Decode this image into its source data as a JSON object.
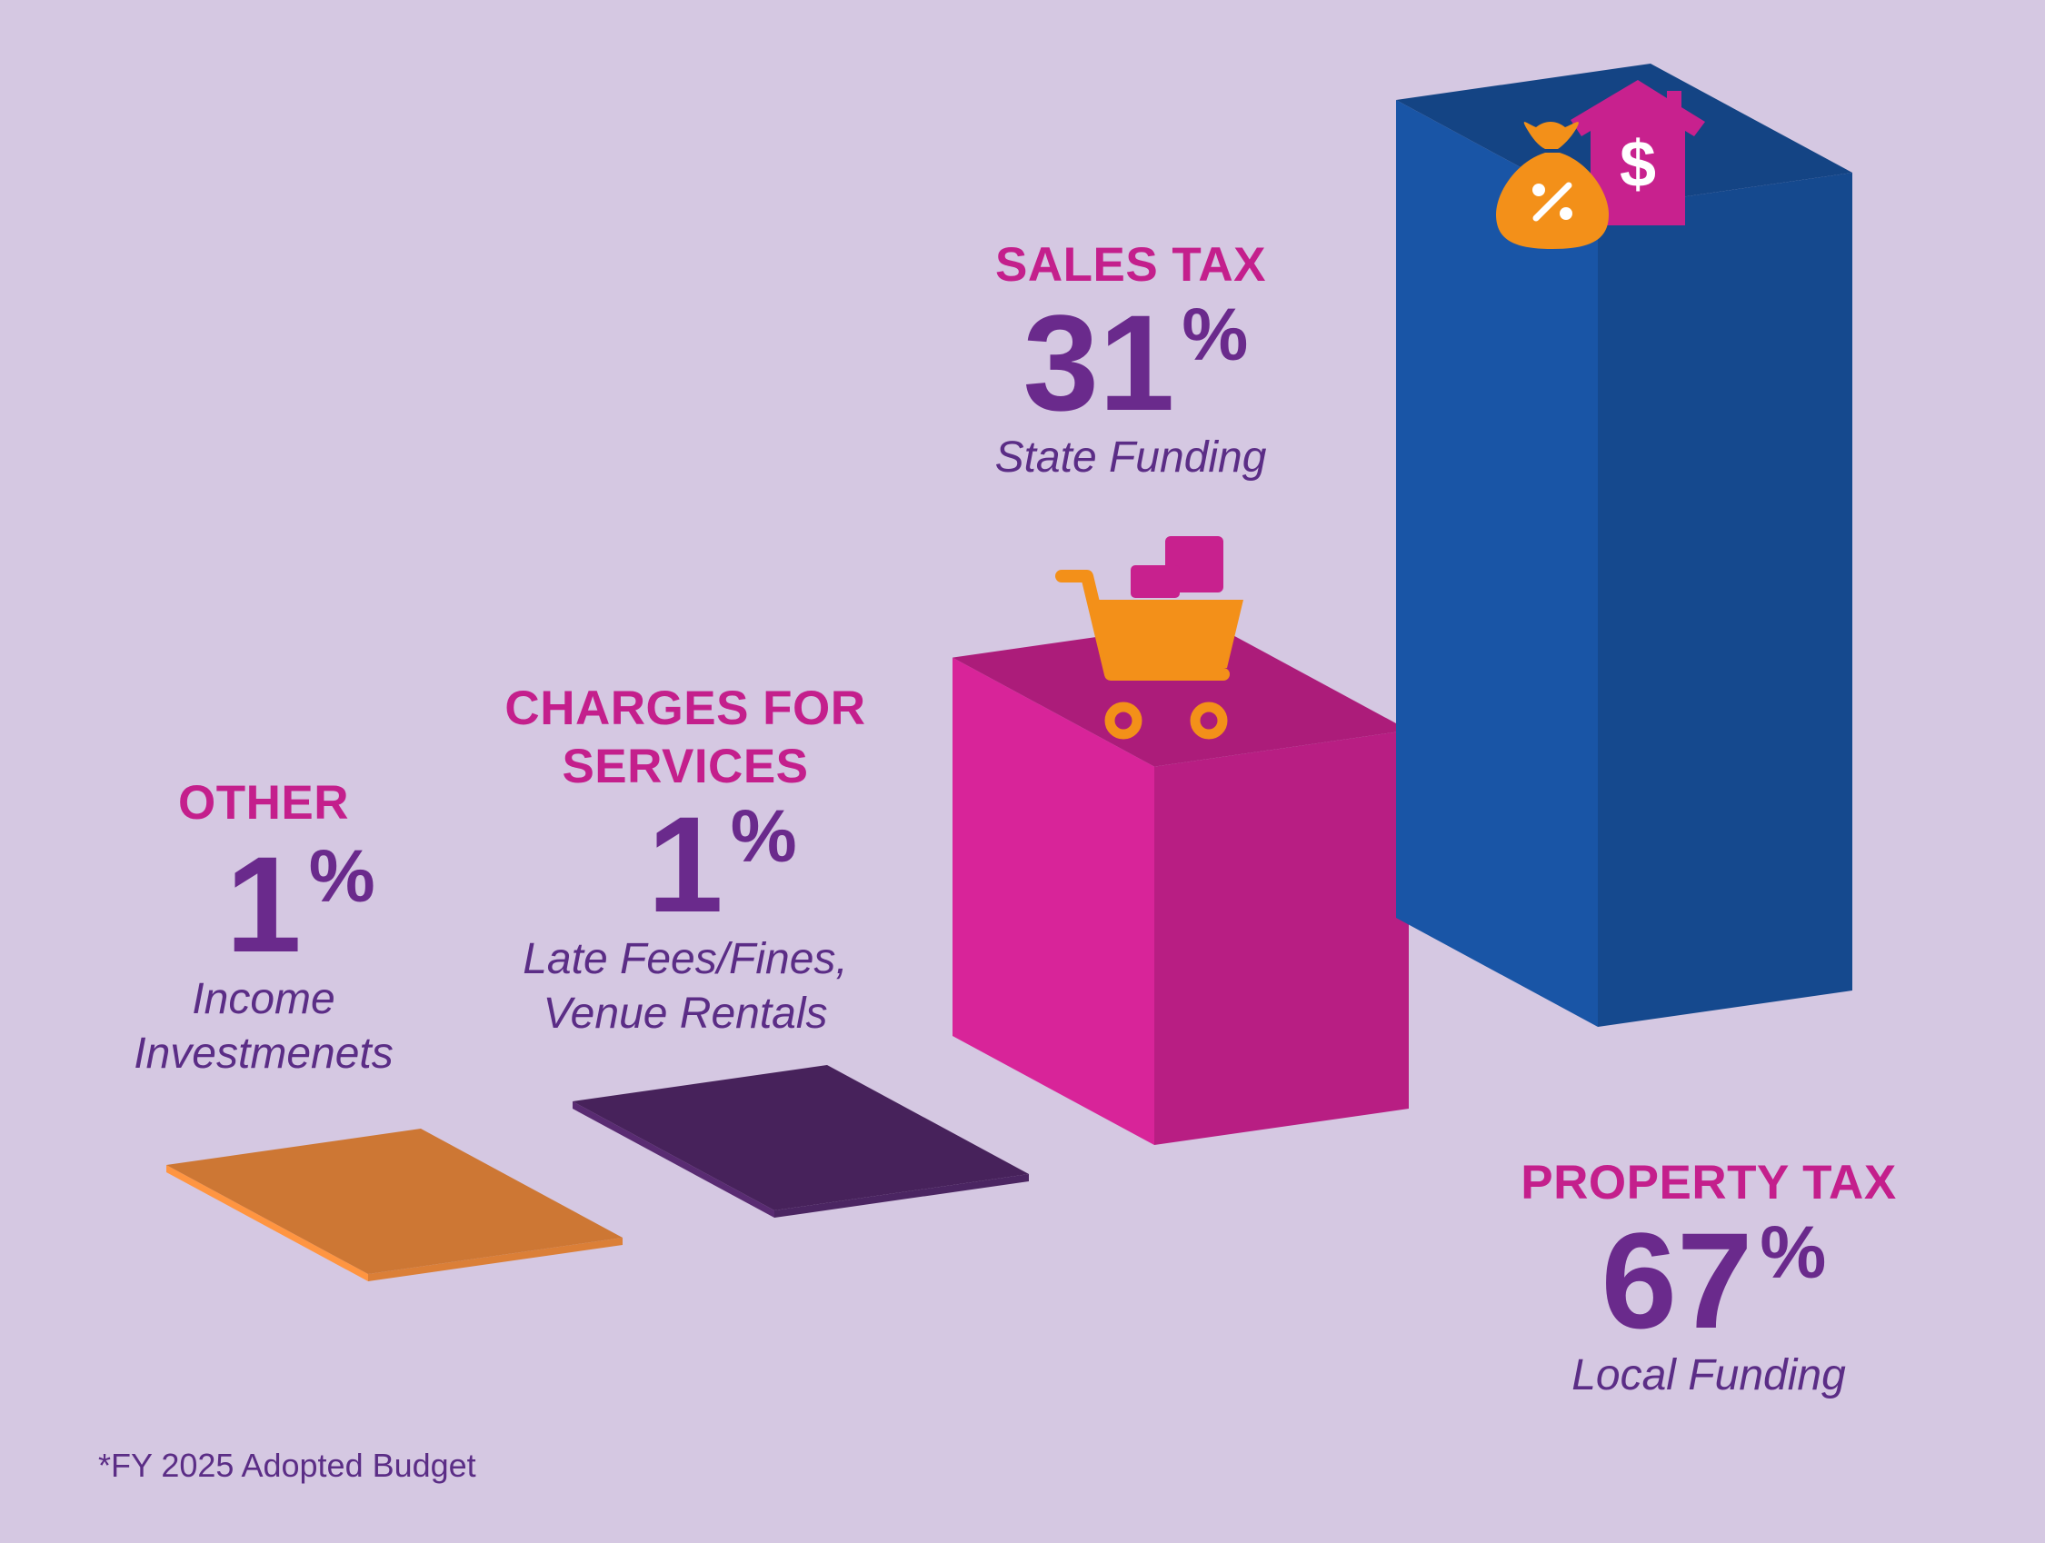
{
  "chart_data": {
    "type": "bar",
    "categories": [
      "OTHER",
      "CHARGES FOR SERVICES",
      "SALES TAX",
      "PROPERTY TAX"
    ],
    "values": [
      1,
      1,
      31,
      67
    ],
    "unit": "%",
    "series": [
      {
        "values": [
          1,
          1,
          31,
          67
        ]
      }
    ],
    "descriptions": [
      "Income Investmenets",
      "Late Fees/Fines, Venue Rentals",
      "State Funding",
      "Local Funding"
    ],
    "colors": [
      "#ee8a3c",
      "#52286a",
      "#c8218e",
      "#174f9a"
    ],
    "icons": [
      "money-bag-icon",
      "house-dollar-icon",
      "shopping-cart-icon"
    ],
    "footnote": "*FY 2025 Adopted Budget"
  },
  "labels": {
    "other": {
      "category": "OTHER",
      "value": "1",
      "unit": "%",
      "desc": [
        "Income",
        "Investmenets"
      ]
    },
    "charges": {
      "category": [
        "CHARGES FOR",
        "SERVICES"
      ],
      "value": "1",
      "unit": "%",
      "desc": [
        "Late Fees/Fines,",
        "Venue Rentals"
      ]
    },
    "sales": {
      "category": "SALES TAX",
      "value": "31",
      "unit": "%",
      "desc": [
        "State Funding"
      ]
    },
    "property": {
      "category": "PROPERTY TAX",
      "value": "67",
      "unit": "%",
      "desc": [
        "Local Funding"
      ]
    }
  },
  "footnote": "*FY 2025 Adopted Budget"
}
